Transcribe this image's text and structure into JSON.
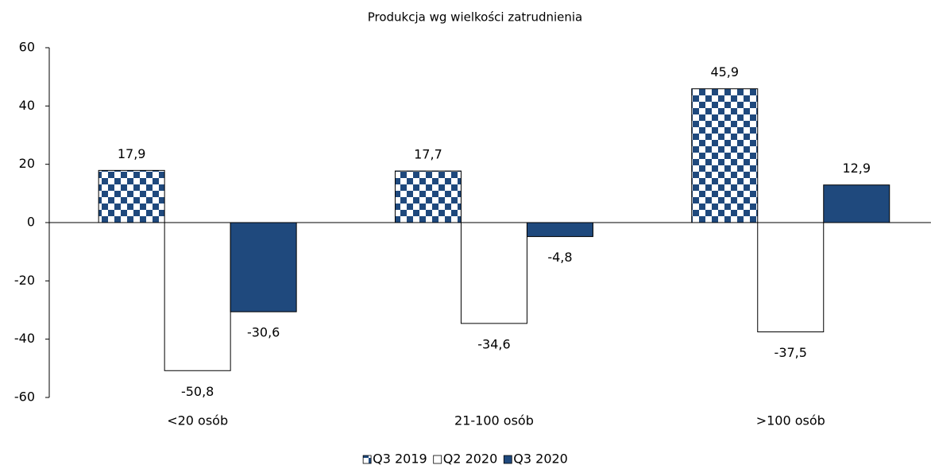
{
  "chart_data": {
    "type": "bar",
    "title": "Produkcja wg wielkości zatrudnienia",
    "categories": [
      "<20 osób",
      "21-100 osób",
      ">100 osób"
    ],
    "series": [
      {
        "name": "Q3 2019",
        "color": "#1f497d",
        "pattern": "checkerboard",
        "values": [
          17.9,
          17.7,
          45.9
        ],
        "value_labels": [
          "17,9",
          "17,7",
          "45,9"
        ]
      },
      {
        "name": "Q2 2020",
        "color": "#ffffff",
        "values": [
          -50.8,
          -34.6,
          -37.5
        ],
        "value_labels": [
          "-50,8",
          "-34,6",
          "-37,5"
        ]
      },
      {
        "name": "Q3 2020",
        "color": "#1f497d",
        "values": [
          -30.6,
          -4.8,
          12.9
        ],
        "value_labels": [
          "-30,6",
          "-4,8",
          "12,9"
        ]
      }
    ],
    "ylim": [
      -60,
      60
    ],
    "yticks": [
      -60,
      -40,
      -20,
      0,
      20,
      40,
      60
    ],
    "grid": false,
    "legend": "bottom"
  }
}
